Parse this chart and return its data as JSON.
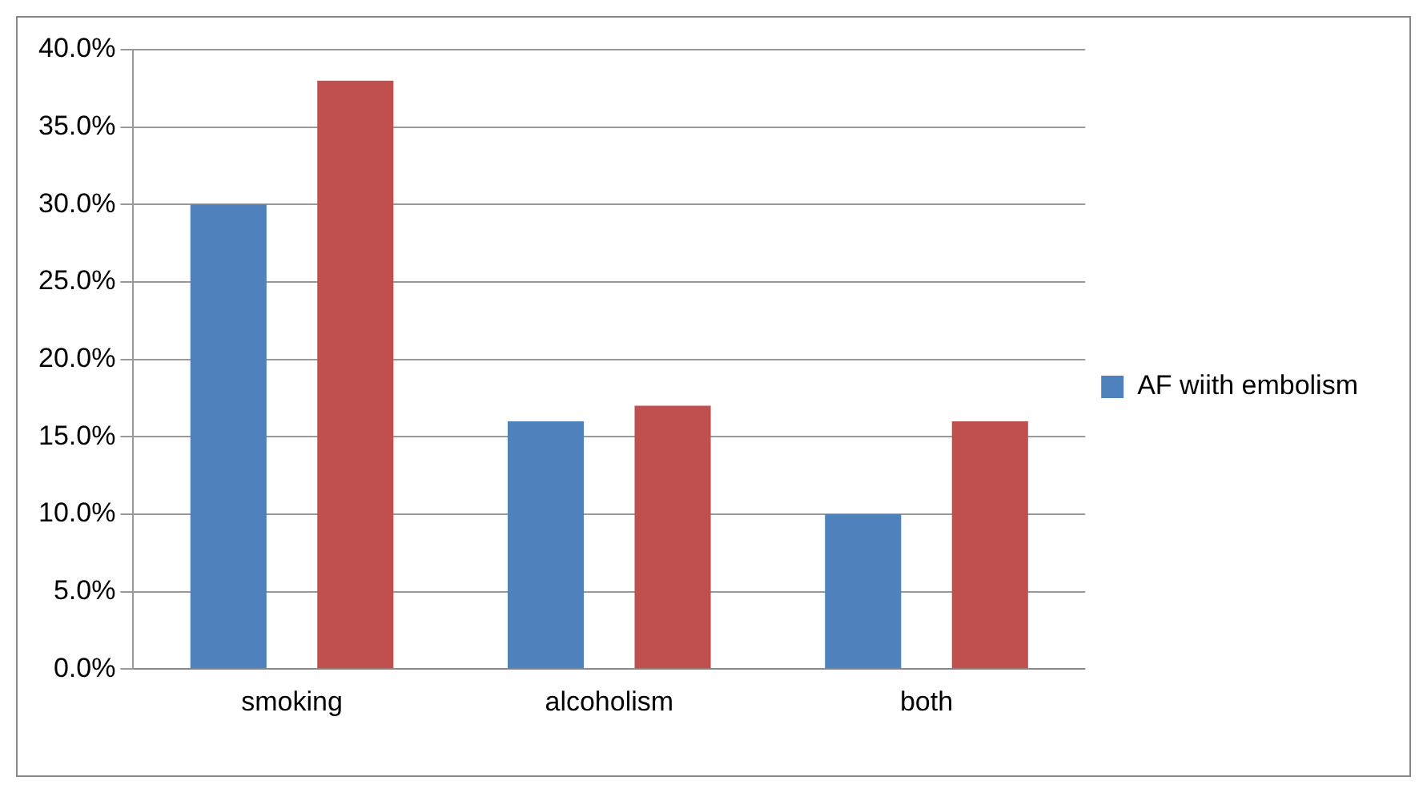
{
  "chart_data": {
    "type": "bar",
    "categories": [
      "smoking",
      "alcoholism",
      "both"
    ],
    "series": [
      {
        "name": "AF wiith embolism",
        "color": "#4f81bd",
        "values": [
          30,
          16,
          10
        ]
      },
      {
        "color": "#c0504d",
        "values": [
          38,
          17,
          16
        ]
      }
    ],
    "ylim": [
      0,
      40
    ],
    "yticks": [
      {
        "value": 0,
        "label": "0.0%"
      },
      {
        "value": 5,
        "label": "5.0%"
      },
      {
        "value": 10,
        "label": "10.0%"
      },
      {
        "value": 15,
        "label": "15.0%"
      },
      {
        "value": 20,
        "label": "20.0%"
      },
      {
        "value": 25,
        "label": "25.0%"
      },
      {
        "value": 30,
        "label": "30.0%"
      },
      {
        "value": 35,
        "label": "35.0%"
      },
      {
        "value": 40,
        "label": "40.0%"
      }
    ],
    "grid": "y",
    "legend": "right"
  }
}
